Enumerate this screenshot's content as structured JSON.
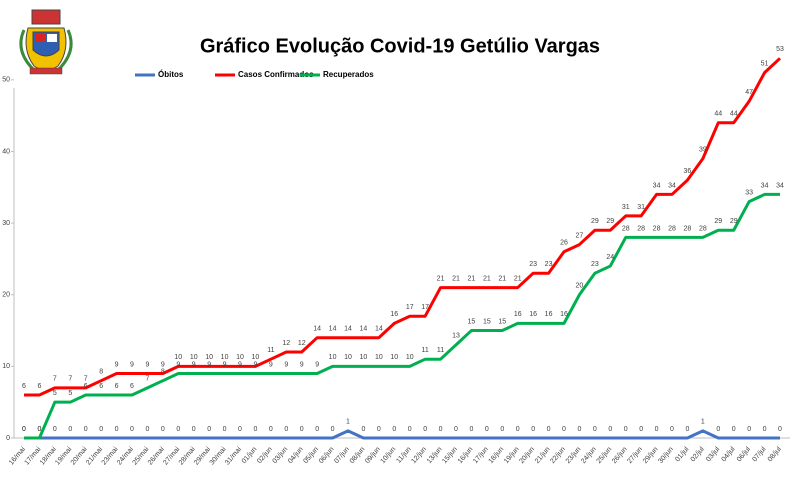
{
  "chart_data": {
    "type": "line",
    "title": "Gráfico Evolução Covid-19 Getúlio Vargas",
    "categories": [
      "16/mai",
      "17/mai",
      "18/mai",
      "19/mai",
      "20/mai",
      "21/mai",
      "23/mai",
      "24/mai",
      "25/mai",
      "26/mai",
      "27/mai",
      "28/mai",
      "29/mai",
      "30/mai",
      "31/mai",
      "01/jun",
      "02/jun",
      "03/jun",
      "04/jun",
      "05/jun",
      "06/jun",
      "07/jun",
      "08/jun",
      "09/jun",
      "10/jun",
      "11/jun",
      "12/jun",
      "13/jun",
      "15/jun",
      "16/jun",
      "17/jun",
      "18/jun",
      "19/jun",
      "20/jun",
      "21/jun",
      "22/jun",
      "23/jun",
      "24/jun",
      "25/jun",
      "26/jun",
      "27/jun",
      "29/jun",
      "30/jun",
      "01/jul",
      "02/jul",
      "03/jul",
      "04/jul",
      "06/jul",
      "07/jul",
      "08/jul"
    ],
    "series": [
      {
        "name": "Óbitos",
        "color": "#4472c4",
        "values": [
          0,
          0,
          0,
          0,
          0,
          0,
          0,
          0,
          0,
          0,
          0,
          0,
          0,
          0,
          0,
          0,
          0,
          0,
          0,
          0,
          0,
          1,
          0,
          0,
          0,
          0,
          0,
          0,
          0,
          0,
          0,
          0,
          0,
          0,
          0,
          0,
          0,
          0,
          0,
          0,
          0,
          0,
          0,
          0,
          1,
          0,
          0,
          0,
          0,
          0
        ]
      },
      {
        "name": "Casos Confirmados",
        "color": "#ff0000",
        "values": [
          6,
          6,
          7,
          7,
          7,
          8,
          9,
          9,
          9,
          9,
          10,
          10,
          10,
          10,
          10,
          10,
          11,
          12,
          12,
          14,
          14,
          14,
          14,
          14,
          16,
          17,
          17,
          21,
          21,
          21,
          21,
          21,
          21,
          23,
          23,
          26,
          27,
          29,
          29,
          31,
          31,
          34,
          34,
          36,
          39,
          44,
          44,
          47,
          51,
          53
        ]
      },
      {
        "name": "Recuperados",
        "color": "#00b050",
        "values": [
          0,
          0,
          5,
          5,
          6,
          6,
          6,
          6,
          7,
          8,
          9,
          9,
          9,
          9,
          9,
          9,
          9,
          9,
          9,
          9,
          10,
          10,
          10,
          10,
          10,
          10,
          11,
          11,
          13,
          15,
          15,
          15,
          16,
          16,
          16,
          16,
          20,
          23,
          24,
          28,
          28,
          28,
          28,
          28,
          28,
          29,
          29,
          33,
          34,
          34
        ]
      }
    ],
    "ylim": [
      0,
      55
    ],
    "yticks": [
      0,
      10,
      20,
      30,
      40,
      50
    ],
    "grid": false
  }
}
